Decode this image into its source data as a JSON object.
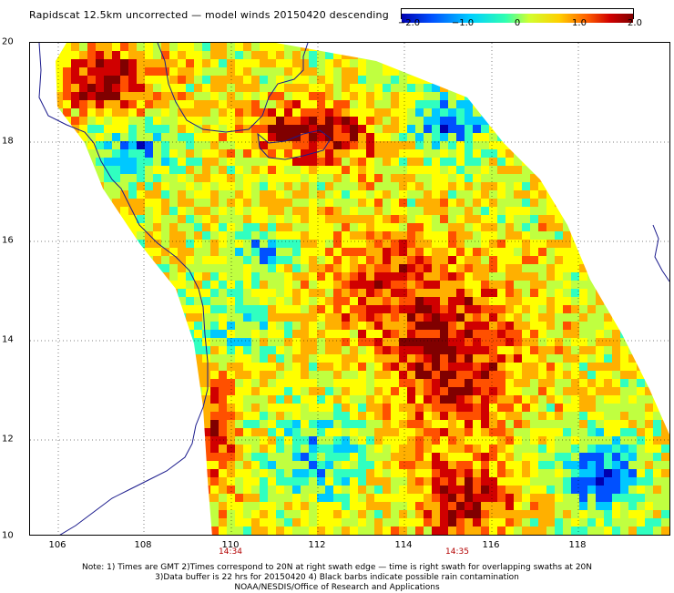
{
  "title": "Rapidscat 12.5km uncorrected — model winds 20150420 descending",
  "colorbar": {
    "ticks": [
      "−2.0",
      "−1.0",
      "0",
      "1.0",
      "2.0"
    ],
    "colors": [
      "#0000b0",
      "#0050ff",
      "#00c8ff",
      "#30ffc0",
      "#c0ff40",
      "#ffff00",
      "#ffb000",
      "#ff5000",
      "#d00000",
      "#800000"
    ]
  },
  "axes": {
    "lon_ticks": [
      "106",
      "108",
      "110",
      "112",
      "114",
      "116",
      "118"
    ],
    "lat_ticks": [
      "20",
      "18",
      "16",
      "14",
      "12",
      "10"
    ]
  },
  "swath_times": [
    "14:34",
    "14:35"
  ],
  "notes": [
    "Note: 1) Times are GMT 2)Times correspond to 20N at right swath edge — time is right swath for overlapping swaths at 20N",
    "3)Data buffer is 22 hrs for 20150420 4) Black barbs indicate possible rain contamination",
    "NOAA/NESDIS/Office of Research and Applications"
  ],
  "map_data": {
    "lon_range": [
      105.3,
      120.0
    ],
    "lat_range": [
      10.0,
      20.0
    ],
    "field": "wind speed difference (uncorrected − model)",
    "value_range": [
      -2.0,
      2.0
    ]
  }
}
